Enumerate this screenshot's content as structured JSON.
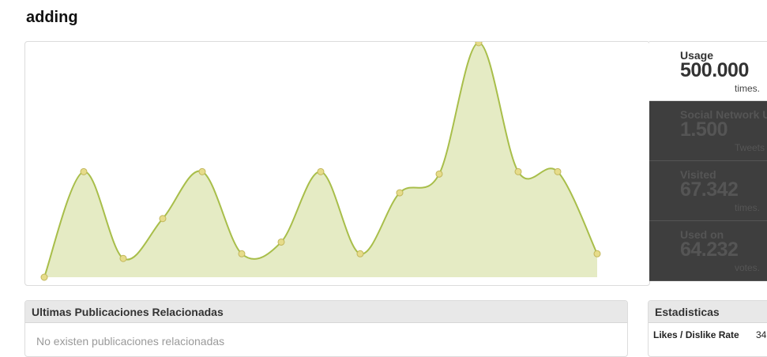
{
  "page": {
    "title": "adding"
  },
  "stats": {
    "tiles": [
      {
        "label": "Usage",
        "value": "500.000",
        "unit": "times."
      },
      {
        "label": "Social Network U",
        "value": "1.500",
        "unit": "Tweets"
      },
      {
        "label": "Visited",
        "value": "67.342",
        "unit": "times."
      },
      {
        "label": "Used on",
        "value": "64.232",
        "unit": "votes."
      }
    ]
  },
  "publications": {
    "title": "Ultimas Publicaciones Relacionadas",
    "empty_text": "No existen publicaciones relacionadas"
  },
  "estadisticas": {
    "title": "Estadisticas",
    "rows": [
      {
        "label": "Likes / Dislike Rate",
        "value": "34"
      }
    ]
  },
  "colors": {
    "line": "#a8be4a",
    "fill": "#e5ebc4",
    "point": "#e6dc8a",
    "point_stroke": "#c2b75c",
    "tile_dark": "#3e3e3e"
  },
  "chart_data": {
    "type": "area",
    "x": [
      0,
      1,
      2,
      3,
      4,
      5,
      6,
      7,
      8,
      9,
      10,
      11,
      12,
      13,
      14
    ],
    "values": [
      0,
      45,
      8,
      25,
      45,
      10,
      15,
      45,
      10,
      36,
      44,
      100,
      45,
      45,
      10
    ],
    "ylim": [
      0,
      100
    ],
    "grid": false,
    "legend": "none"
  }
}
